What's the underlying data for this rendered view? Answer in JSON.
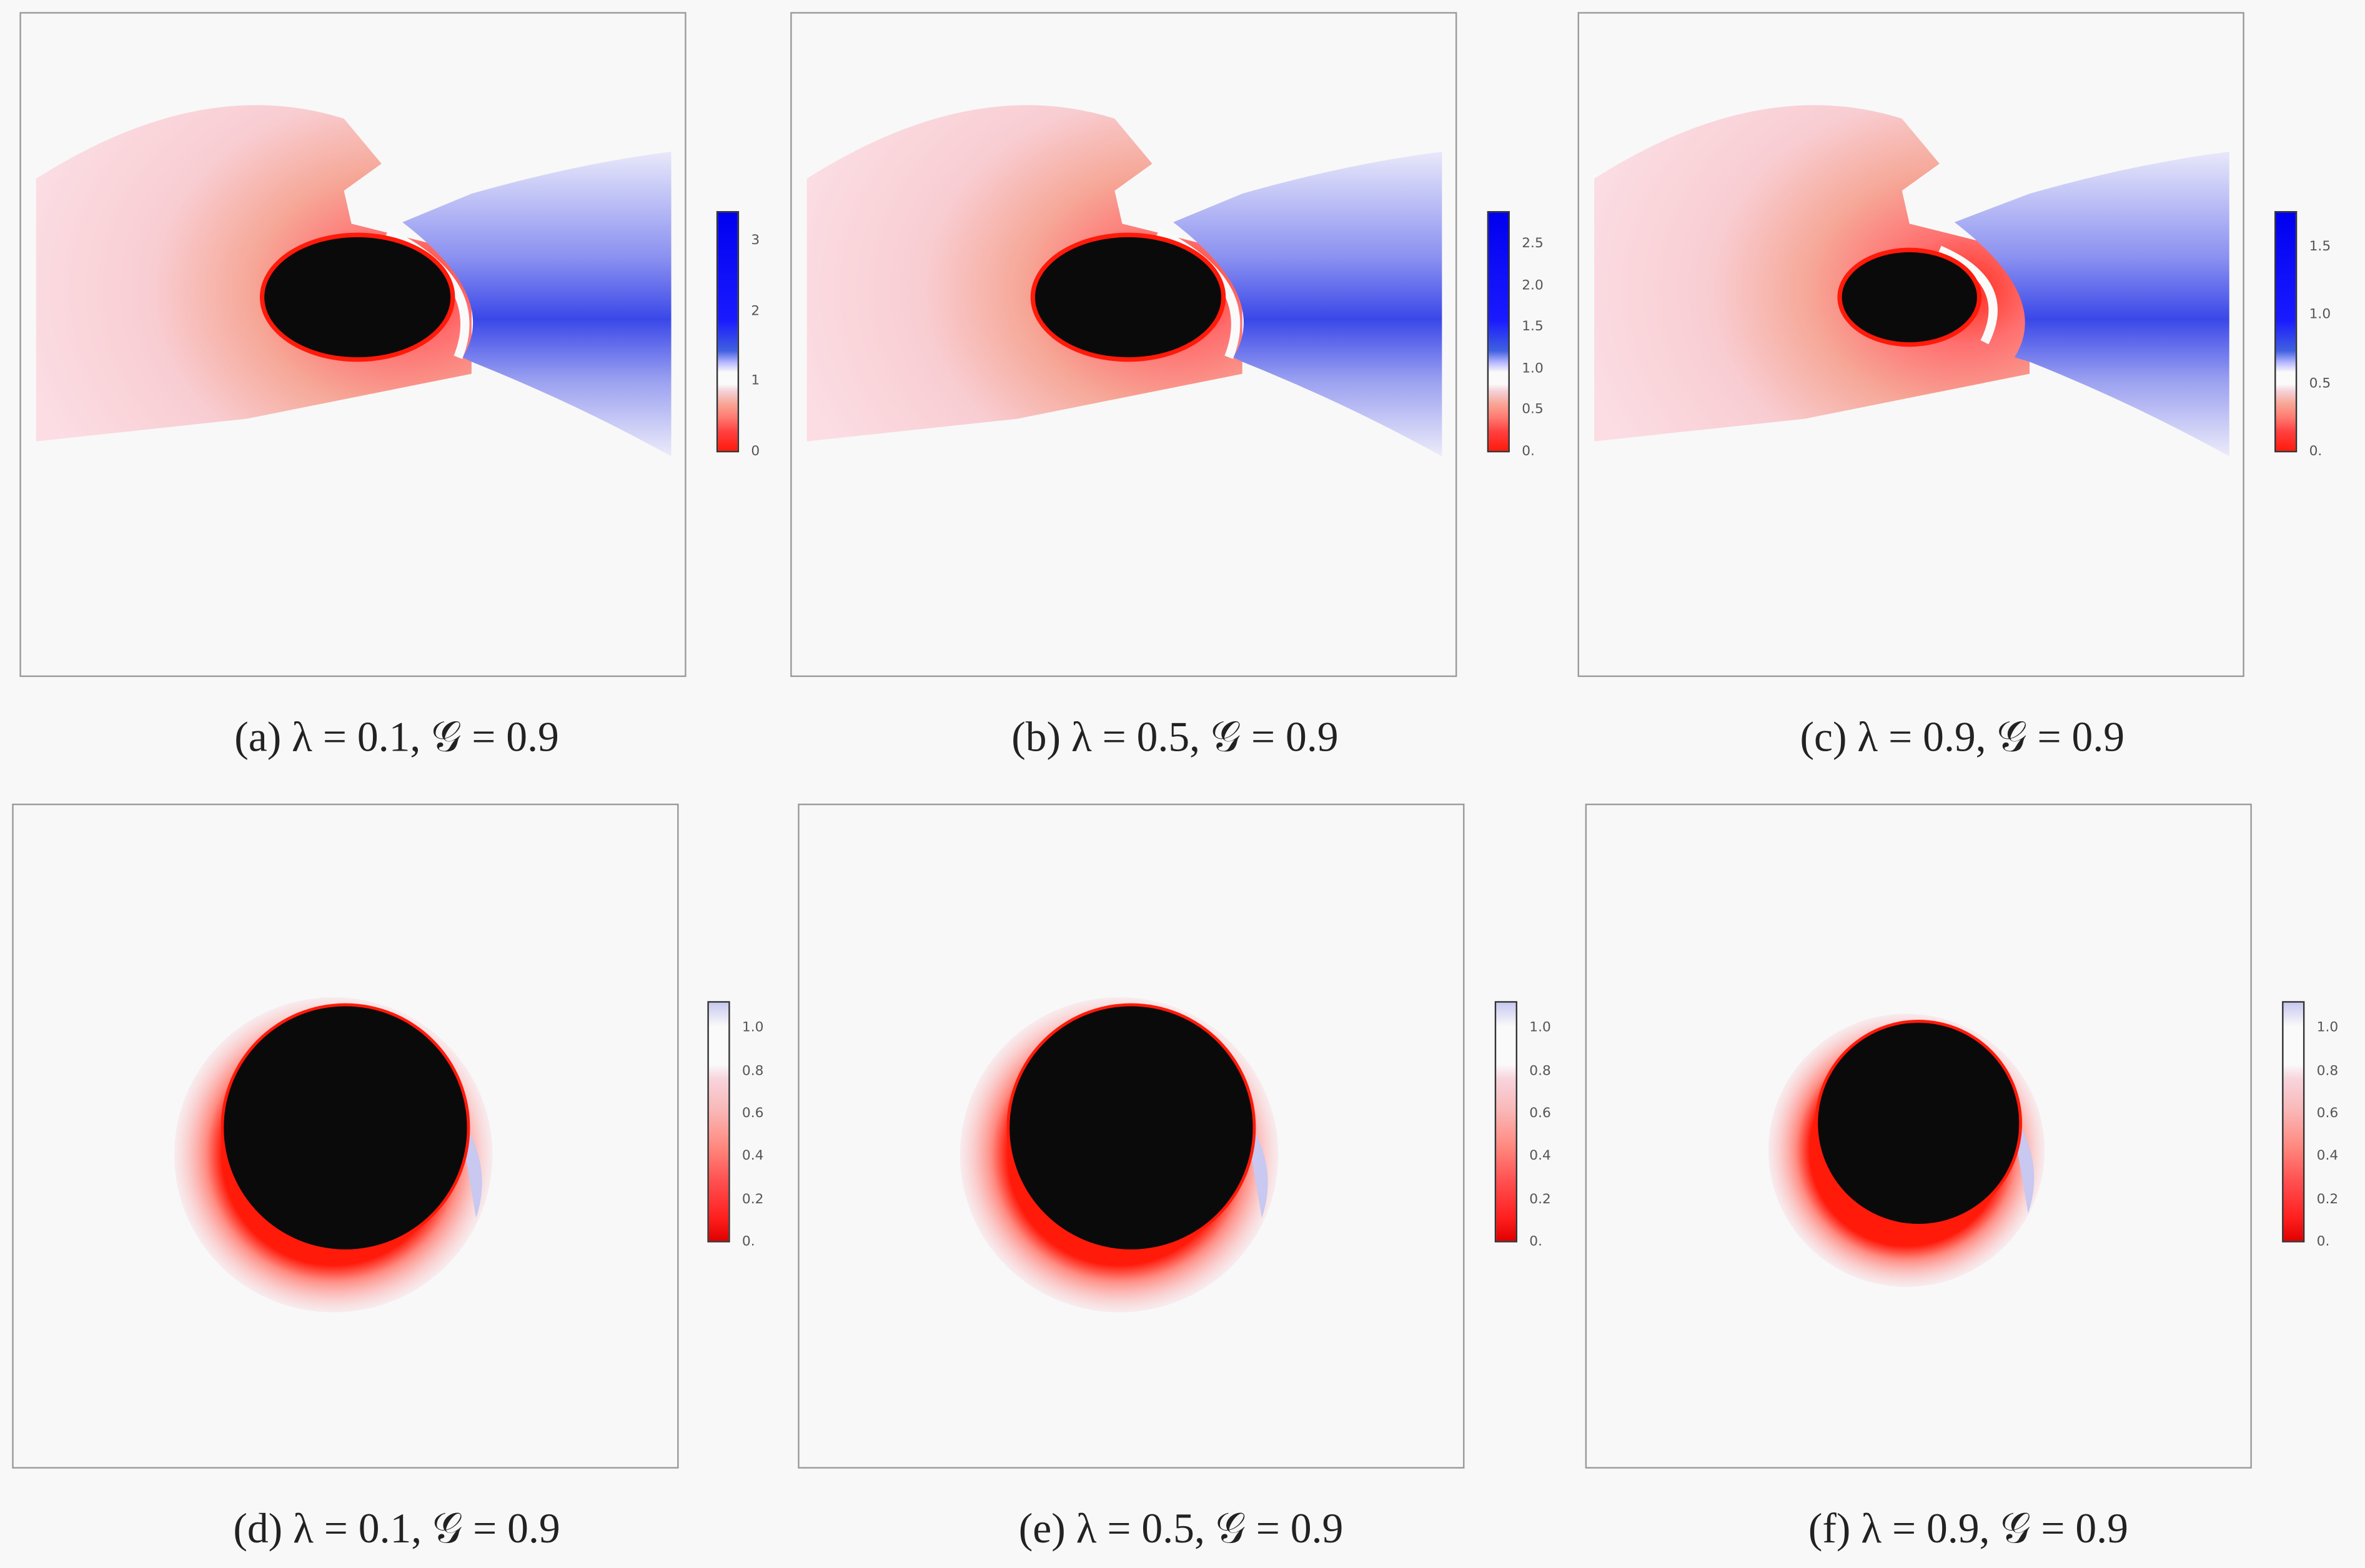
{
  "figure": {
    "panels": [
      {
        "id": "a",
        "caption": "(a) λ = 0.1, 𝒢 = 0.9",
        "colorbar": {
          "range": [
            0,
            3.43
          ],
          "ticks": [
            "3",
            "2",
            "1",
            "0"
          ],
          "tick_values": [
            3,
            2,
            1,
            0
          ]
        },
        "kind": "wake"
      },
      {
        "id": "b",
        "caption": "(b) λ = 0.5, 𝒢 = 0.9",
        "colorbar": {
          "range": [
            0,
            2.9
          ],
          "ticks": [
            "2.5",
            "2.0",
            "1.5",
            "1.0",
            "0.5",
            "0."
          ],
          "tick_values": [
            2.5,
            2.0,
            1.5,
            1.0,
            0.5,
            0
          ]
        },
        "kind": "wake"
      },
      {
        "id": "c",
        "caption": "(c) λ = 0.9, 𝒢 = 0.9",
        "colorbar": {
          "range": [
            0,
            1.76
          ],
          "ticks": [
            "1.5",
            "1.0",
            "0.5",
            "0."
          ],
          "tick_values": [
            1.5,
            1.0,
            0.5,
            0
          ]
        },
        "kind": "wake"
      },
      {
        "id": "d",
        "caption": "(d) λ = 0.1, 𝒢 = 0.9",
        "colorbar": {
          "range": [
            0,
            1.13
          ],
          "ticks": [
            "1.0",
            "0.8",
            "0.6",
            "0.4",
            "0.2",
            "0."
          ],
          "tick_values": [
            1.0,
            0.8,
            0.6,
            0.4,
            0.2,
            0
          ]
        },
        "kind": "sphere"
      },
      {
        "id": "e",
        "caption": "(e) λ = 0.5, 𝒢 = 0.9",
        "colorbar": {
          "range": [
            0,
            1.13
          ],
          "ticks": [
            "1.0",
            "0.8",
            "0.6",
            "0.4",
            "0.2",
            "0."
          ],
          "tick_values": [
            1.0,
            0.8,
            0.6,
            0.4,
            0.2,
            0
          ]
        },
        "kind": "sphere"
      },
      {
        "id": "f",
        "caption": "(f) λ = 0.9, 𝒢 = 0.9",
        "colorbar": {
          "range": [
            0,
            1.13
          ],
          "ticks": [
            "1.0",
            "0.8",
            "0.6",
            "0.4",
            "0.2",
            "0."
          ],
          "tick_values": [
            1.0,
            0.8,
            0.6,
            0.4,
            0.2,
            0
          ]
        },
        "kind": "sphere"
      }
    ],
    "colors": {
      "low": "#ff0000",
      "mid": "#ffffff",
      "high": "#0000ff",
      "body": "#0a0a0a",
      "background": "#f8f8f8"
    }
  }
}
